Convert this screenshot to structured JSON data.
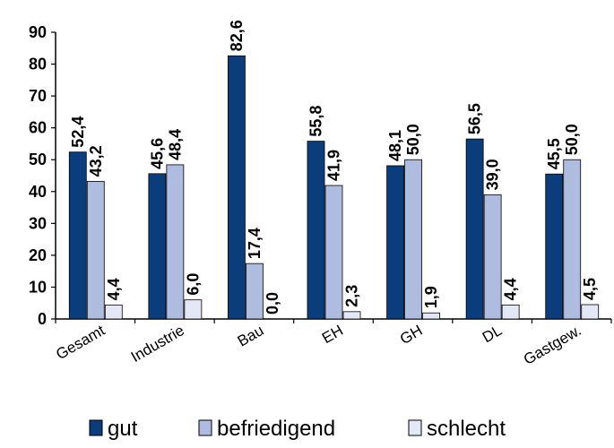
{
  "chart_data": {
    "type": "bar",
    "categories": [
      "Gesamt",
      "Industrie",
      "Bau",
      "EH",
      "GH",
      "DL",
      "Gastgew."
    ],
    "series": [
      {
        "name": "gut",
        "color": "#0b3d7d",
        "values": [
          52.4,
          45.6,
          82.6,
          55.8,
          48.1,
          56.5,
          45.5
        ],
        "labels": [
          "52,4",
          "45,6",
          "82,6",
          "55,8",
          "48,1",
          "56,5",
          "45,5"
        ]
      },
      {
        "name": "befriedigend",
        "color": "#aebce0",
        "values": [
          43.2,
          48.4,
          17.4,
          41.9,
          50.0,
          39.0,
          50.0
        ],
        "labels": [
          "43,2",
          "48,4",
          "17,4",
          "41,9",
          "50,0",
          "39,0",
          "50,0"
        ]
      },
      {
        "name": "schlecht",
        "color": "#e3e7f6",
        "values": [
          4.4,
          6.0,
          0.0,
          2.3,
          1.9,
          4.4,
          4.5
        ],
        "labels": [
          "4,4",
          "6,0",
          "0,0",
          "2,3",
          "1,9",
          "4,4",
          "4,5"
        ]
      }
    ],
    "ylim": [
      0,
      90
    ],
    "yticks": [
      "0",
      "10",
      "20",
      "30",
      "40",
      "50",
      "60",
      "70",
      "80",
      "90"
    ],
    "grid": false,
    "legend_position": "bottom"
  }
}
